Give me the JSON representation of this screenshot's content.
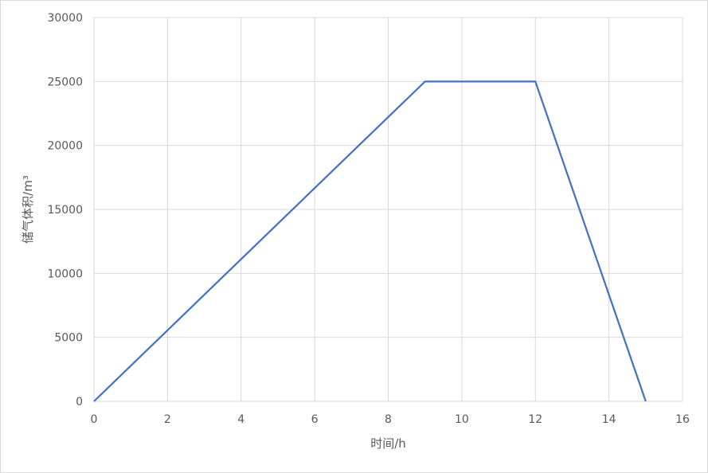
{
  "chart_data": {
    "type": "line",
    "title": "",
    "xlabel": "时间/h",
    "ylabel": "储气体积/m³",
    "xlim": [
      0,
      16
    ],
    "ylim": [
      0,
      30000
    ],
    "x_ticks": [
      0,
      2,
      4,
      6,
      8,
      10,
      12,
      14,
      16
    ],
    "y_ticks": [
      0,
      5000,
      10000,
      15000,
      20000,
      25000,
      30000
    ],
    "grid": true,
    "legend": "none",
    "series": [
      {
        "color": "#4472c4",
        "points": [
          {
            "x": 0,
            "y": 0
          },
          {
            "x": 9,
            "y": 25000
          },
          {
            "x": 12,
            "y": 25000
          },
          {
            "x": 15,
            "y": 0
          }
        ]
      }
    ]
  }
}
